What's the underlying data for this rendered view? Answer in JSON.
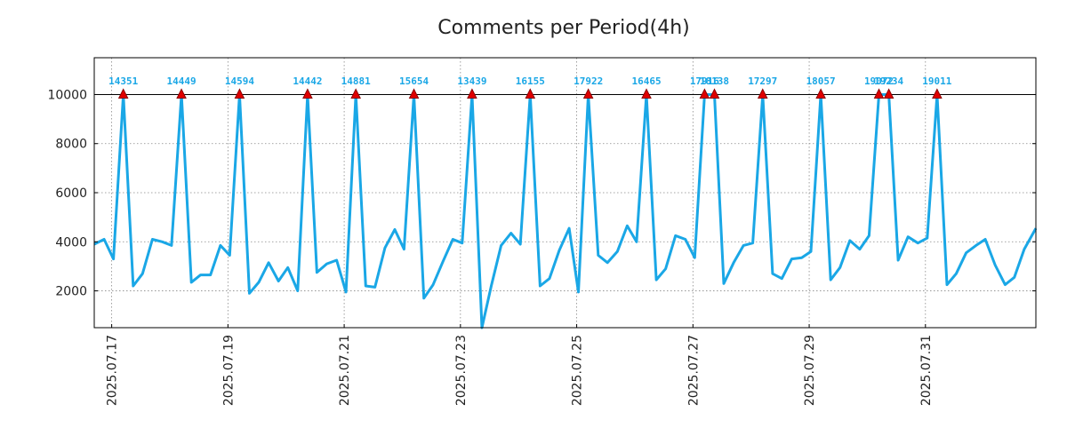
{
  "chart_data": {
    "type": "line",
    "title": "Comments per Period(4h)",
    "xlabel": "",
    "ylabel": "",
    "ylim": [
      500,
      11500
    ],
    "yticks": [
      2000,
      4000,
      6000,
      8000,
      10000
    ],
    "ytick_labels": [
      "2000",
      "4000",
      "6000",
      "8000",
      "10000"
    ],
    "clip_value": 10000,
    "grid": true,
    "xlim_days": [
      0,
      16.2
    ],
    "xticks": [
      {
        "day": 0.3,
        "label": "2025.07.17"
      },
      {
        "day": 2.3,
        "label": "2025.07.19"
      },
      {
        "day": 4.3,
        "label": "2025.07.21"
      },
      {
        "day": 6.3,
        "label": "2025.07.23"
      },
      {
        "day": 8.3,
        "label": "2025.07.25"
      },
      {
        "day": 10.3,
        "label": "2025.07.27"
      },
      {
        "day": 12.3,
        "label": "2025.07.29"
      },
      {
        "day": 14.3,
        "label": "2025.07.31"
      }
    ],
    "colors": {
      "line": "#1aa7e6",
      "marker": "#e00000",
      "marker_edge": "#8b0000",
      "threshold": "#000000"
    },
    "series": [
      {
        "name": "Comments",
        "x_days": [
          0.0,
          0.17,
          0.33,
          0.5,
          0.67,
          0.83,
          1.0,
          1.17,
          1.33,
          1.5,
          1.67,
          1.83,
          2.0,
          2.17,
          2.33,
          2.5,
          2.67,
          2.83,
          3.0,
          3.17,
          3.33,
          3.5,
          3.67,
          3.83,
          4.0,
          4.17,
          4.33,
          4.5,
          4.67,
          4.83,
          5.0,
          5.17,
          5.33,
          5.5,
          5.67,
          5.83,
          6.0,
          6.17,
          6.33,
          6.5,
          6.67,
          6.83,
          7.0,
          7.17,
          7.33,
          7.5,
          7.67,
          7.83,
          8.0,
          8.17,
          8.33,
          8.5,
          8.67,
          8.83,
          9.0,
          9.17,
          9.33,
          9.5,
          9.67,
          9.83,
          10.0,
          10.17,
          10.33,
          10.5,
          10.67,
          10.83,
          11.0,
          11.17,
          11.33,
          11.5,
          11.67,
          11.83,
          12.0,
          12.17,
          12.33,
          12.5,
          12.67,
          12.83,
          13.0,
          13.17,
          13.33,
          13.5,
          13.67,
          13.83,
          14.0,
          14.17,
          14.33,
          14.5,
          14.67,
          14.83,
          15.0,
          15.17,
          15.33,
          15.5,
          15.67,
          15.83,
          16.0,
          16.2
        ],
        "values": [
          3900,
          4100,
          3300,
          14351,
          2200,
          2700,
          4100,
          4000,
          3850,
          14449,
          2350,
          2650,
          2650,
          3850,
          3450,
          14594,
          1900,
          2350,
          3150,
          2400,
          2950,
          2000,
          14442,
          2750,
          3100,
          3250,
          1950,
          14881,
          2200,
          2150,
          3750,
          4500,
          3700,
          15654,
          1700,
          2250,
          3200,
          4100,
          3950,
          13439,
          500,
          2200,
          3850,
          4350,
          3900,
          16155,
          2200,
          2500,
          3650,
          4550,
          1950,
          17922,
          3450,
          3150,
          3600,
          4650,
          4000,
          16465,
          2450,
          2900,
          4250,
          4100,
          3350,
          17916,
          18138,
          2300,
          3150,
          3850,
          3950,
          17297,
          2700,
          2500,
          3300,
          3350,
          3600,
          18057,
          2450,
          2950,
          4050,
          3700,
          4250,
          19072,
          19234,
          3250,
          4200,
          3950,
          4150,
          19011,
          2250,
          2700,
          3550,
          3850,
          4100,
          3050,
          2250,
          2550,
          3700,
          4550
        ]
      }
    ],
    "peaks": [
      {
        "day": 0.5,
        "label": "14351"
      },
      {
        "day": 1.5,
        "label": "14449"
      },
      {
        "day": 2.5,
        "label": "14594"
      },
      {
        "day": 3.67,
        "label": "14442"
      },
      {
        "day": 4.5,
        "label": "14881"
      },
      {
        "day": 5.5,
        "label": "15654"
      },
      {
        "day": 6.5,
        "label": "13439"
      },
      {
        "day": 7.5,
        "label": "16155"
      },
      {
        "day": 8.5,
        "label": "17922"
      },
      {
        "day": 9.5,
        "label": "16465"
      },
      {
        "day": 10.5,
        "label": "17916"
      },
      {
        "day": 10.67,
        "label": "18138"
      },
      {
        "day": 11.5,
        "label": "17297"
      },
      {
        "day": 12.5,
        "label": "18057"
      },
      {
        "day": 13.5,
        "label": "19072"
      },
      {
        "day": 13.67,
        "label": "19234"
      },
      {
        "day": 14.5,
        "label": "19011"
      }
    ]
  }
}
